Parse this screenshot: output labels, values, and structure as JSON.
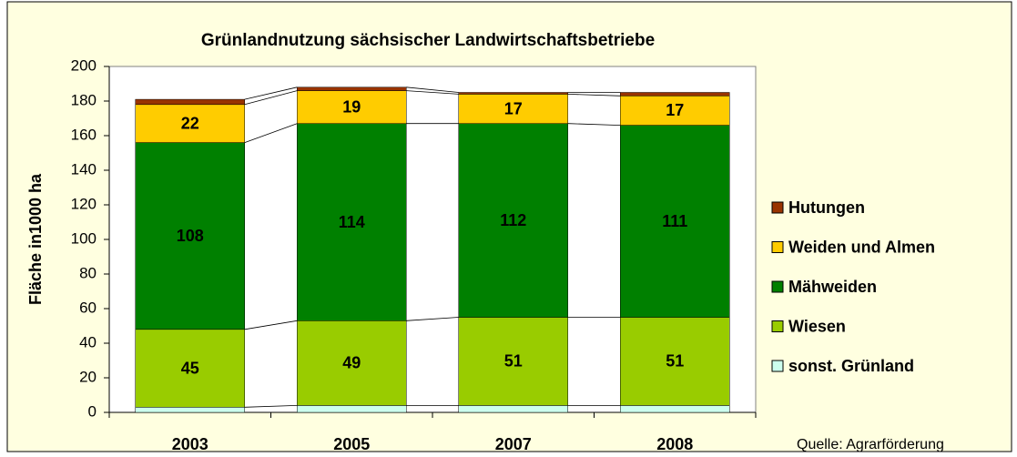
{
  "chart_data": {
    "type": "stacked_bar",
    "title": "Grünlandnutzung sächsischer Landwirtschaftsbetriebe",
    "y_label": "Fläche in1000 ha",
    "source": "Quelle: Agrarförderung",
    "categories": [
      "2003",
      "2005",
      "2007",
      "2008"
    ],
    "series": [
      {
        "name": "sonst. Grünland",
        "color": "#ccffee",
        "values": [
          3,
          4,
          4,
          4
        ],
        "labels": false
      },
      {
        "name": "Wiesen",
        "color": "#99cc00",
        "values": [
          45,
          49,
          51,
          51
        ],
        "labels": true
      },
      {
        "name": "Mähweiden",
        "color": "#008000",
        "values": [
          108,
          114,
          112,
          111
        ],
        "labels": true
      },
      {
        "name": "Weiden und Almen",
        "color": "#ffcc00",
        "values": [
          22,
          19,
          17,
          17
        ],
        "labels": true
      },
      {
        "name": "Hutungen",
        "color": "#993300",
        "values": [
          3,
          2,
          1,
          2
        ],
        "labels": false
      }
    ],
    "ylim": [
      0,
      200
    ],
    "yticks": [
      0,
      20,
      40,
      60,
      80,
      100,
      120,
      140,
      160,
      180,
      200
    ],
    "series_lines": true,
    "legend": "right"
  }
}
